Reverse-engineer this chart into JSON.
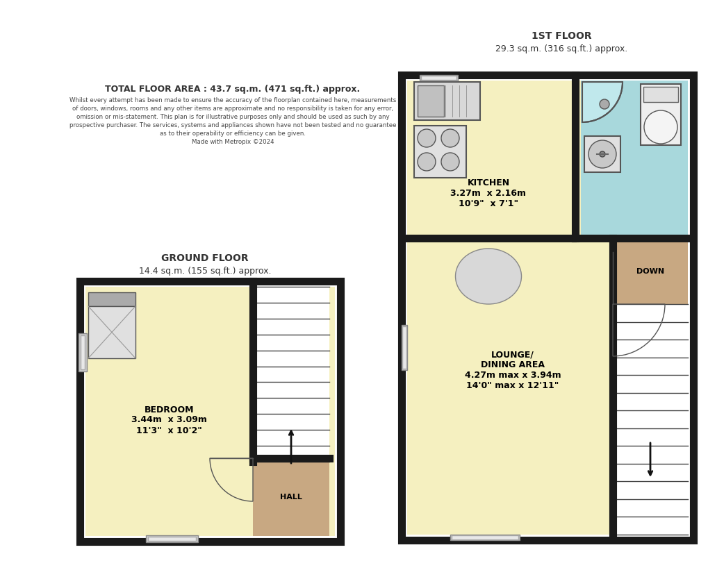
{
  "bg_color": "#ffffff",
  "wall_color": "#1a1a1a",
  "room_fill_yellow": "#f5f0c0",
  "room_fill_blue": "#a8d8dc",
  "room_fill_tan": "#c8a882",
  "room_fill_gray": "#c0c0c0",
  "title_1st": "1ST FLOOR",
  "subtitle_1st": "29.3 sq.m. (316 sq.ft.) approx.",
  "title_gnd": "GROUND FLOOR",
  "subtitle_gnd": "14.4 sq.m. (155 sq.ft.) approx.",
  "total_area": "TOTAL FLOOR AREA : 43.7 sq.m. (471 sq.ft.) approx.",
  "disclaimer_lines": [
    "Whilst every attempt has been made to ensure the accuracy of the floorplan contained here, measurements",
    "of doors, windows, rooms and any other items are approximate and no responsibility is taken for any error,",
    "omission or mis-statement. This plan is for illustrative purposes only and should be used as such by any",
    "prospective purchaser. The services, systems and appliances shown have not been tested and no guarantee",
    "as to their operability or efficiency can be given.",
    "Made with Metropix ©2024"
  ],
  "kitchen_label": "KITCHEN\n3.27m  x 2.16m\n10'9\"  x 7'1\"",
  "lounge_label": "LOUNGE/\nDINING AREA\n4.27m max x 3.94m\n14'0\" max x 12'11\"",
  "bedroom_label": "BEDROOM\n3.44m  x 3.09m\n11'3\"  x 10'2\"",
  "hall_label": "HALL",
  "down_label": "DOWN"
}
